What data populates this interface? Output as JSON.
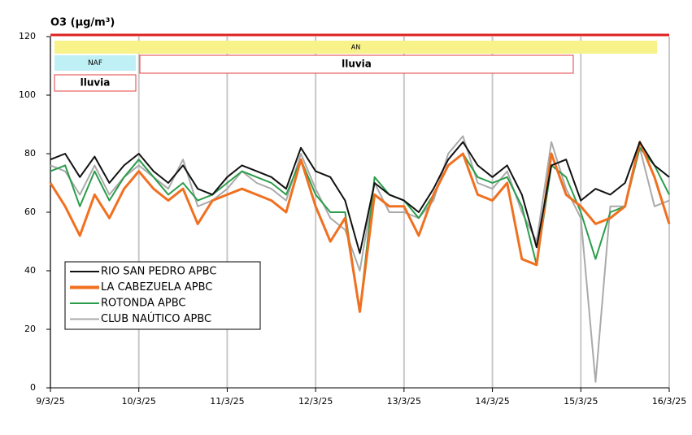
{
  "chart_data": {
    "type": "line",
    "title": "O3 (µg/m³)",
    "categories": [
      "9/3/25",
      null,
      null,
      null,
      null,
      null,
      "10/3/25",
      null,
      null,
      null,
      null,
      null,
      "11/3/25",
      null,
      null,
      null,
      null,
      null,
      "12/3/25",
      null,
      null,
      null,
      null,
      null,
      "13/3/25",
      null,
      null,
      null,
      null,
      null,
      "14/3/25",
      null,
      null,
      null,
      null,
      null,
      "15/3/25",
      null,
      null,
      null,
      null,
      null,
      "16/3/25"
    ],
    "series": [
      {
        "name": "RIO SAN PEDRO APBC",
        "color": "#111111",
        "values": [
          78,
          80,
          72,
          79,
          70,
          76,
          80,
          74,
          70,
          76,
          68,
          66,
          72,
          76,
          74,
          72,
          68,
          82,
          74,
          72,
          64,
          46,
          70,
          66,
          64,
          60,
          68,
          78,
          84,
          76,
          72,
          76,
          66,
          48,
          76,
          78,
          64,
          68,
          66,
          70,
          84,
          76,
          72
        ]
      },
      {
        "name": "LA CABEZUELA  APBC",
        "color": "#f07020",
        "values": [
          70,
          62,
          52,
          66,
          58,
          68,
          74,
          68,
          64,
          68,
          56,
          64,
          66,
          68,
          66,
          64,
          60,
          78,
          62,
          50,
          58,
          26,
          66,
          62,
          62,
          52,
          66,
          76,
          80,
          66,
          64,
          70,
          44,
          42,
          80,
          66,
          62,
          56,
          58,
          62,
          84,
          72,
          56
        ]
      },
      {
        "name": "ROTONDA  APBC",
        "color": "#2a9d4a",
        "values": [
          74,
          76,
          62,
          74,
          64,
          72,
          78,
          72,
          66,
          70,
          64,
          66,
          70,
          74,
          72,
          70,
          66,
          78,
          66,
          60,
          60,
          26,
          72,
          66,
          64,
          58,
          66,
          76,
          80,
          72,
          70,
          72,
          62,
          42,
          76,
          72,
          60,
          44,
          60,
          62,
          82,
          76,
          66
        ]
      },
      {
        "name": "CLUB NAÚTICO  APBC",
        "color": "#aaaaaa",
        "values": [
          76,
          74,
          66,
          76,
          66,
          72,
          76,
          72,
          68,
          78,
          62,
          64,
          68,
          74,
          70,
          68,
          64,
          80,
          68,
          58,
          54,
          40,
          70,
          60,
          60,
          58,
          64,
          80,
          86,
          70,
          68,
          74,
          60,
          50,
          84,
          68,
          58,
          2,
          62,
          62,
          82,
          62,
          64
        ]
      }
    ],
    "ylim": [
      0,
      120
    ],
    "yticks": [
      0,
      20,
      40,
      60,
      80,
      100,
      120
    ],
    "grid": "x",
    "annotations": [
      "AN",
      "NAF",
      "lluvia",
      "lluvia"
    ]
  }
}
